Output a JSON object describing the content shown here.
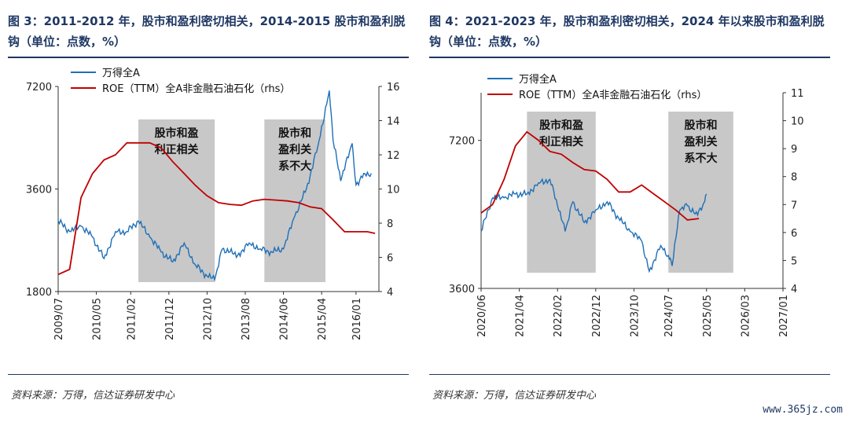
{
  "figures": [
    {
      "title": "图 3：2011-2012 年，股市和盈利密切相关，2014-2015 股市和盈利脱钩（单位：点数，%）",
      "source": "资料来源：万得，信达证券研发中心"
    },
    {
      "title": "图 4：2021-2023 年，股市和盈利密切相关，2024 年以来股市和盈利脱钩（单位：点数，%）",
      "source": "资料来源：万得，信达证券研发中心"
    }
  ],
  "watermark": "www.365jz.com",
  "colors": {
    "index": "#1f6fb7",
    "roe": "#c00000",
    "shade": "#c8c8c8",
    "axis": "#333333"
  },
  "chart_data": [
    {
      "type": "line",
      "y_scale_left": "log",
      "legend_position": "top-left",
      "series": [
        {
          "name": "万得全A",
          "axis": "left",
          "x": [
            "2009-07",
            "2009-10",
            "2010-01",
            "2010-04",
            "2010-07",
            "2010-10",
            "2011-01",
            "2011-04",
            "2011-07",
            "2011-10",
            "2012-01",
            "2012-04",
            "2012-07",
            "2012-10",
            "2012-12",
            "2013-02",
            "2013-06",
            "2013-09",
            "2013-12",
            "2014-03",
            "2014-06",
            "2014-09",
            "2014-12",
            "2015-03",
            "2015-06",
            "2015-07",
            "2015-09",
            "2015-12",
            "2016-01",
            "2016-03",
            "2016-05"
          ],
          "values": [
            2900,
            2700,
            2800,
            2600,
            2250,
            2700,
            2700,
            2900,
            2600,
            2350,
            2200,
            2500,
            2150,
            2000,
            1950,
            2400,
            2300,
            2500,
            2400,
            2350,
            2400,
            3000,
            3600,
            4800,
            7000,
            5000,
            3800,
            4900,
            3700,
            4000,
            4000
          ]
        },
        {
          "name": "ROE（TTM）全A非金融石油石化（rhs）",
          "axis": "right",
          "x": [
            "2009-07",
            "2009-10",
            "2010-01",
            "2010-04",
            "2010-07",
            "2010-10",
            "2011-01",
            "2011-04",
            "2011-07",
            "2011-10",
            "2012-01",
            "2012-04",
            "2012-07",
            "2012-10",
            "2013-01",
            "2013-04",
            "2013-07",
            "2013-10",
            "2014-01",
            "2014-04",
            "2014-07",
            "2014-10",
            "2015-01",
            "2015-04",
            "2015-07",
            "2015-10",
            "2016-01",
            "2016-04",
            "2016-06"
          ],
          "values": [
            5.0,
            5.3,
            9.5,
            10.9,
            11.7,
            12.0,
            12.7,
            12.7,
            12.7,
            12.4,
            11.6,
            10.9,
            10.2,
            9.6,
            9.2,
            9.1,
            9.05,
            9.3,
            9.4,
            9.35,
            9.3,
            9.2,
            8.95,
            8.85,
            8.2,
            7.5,
            7.5,
            7.5,
            7.4
          ]
        }
      ],
      "shaded_periods": [
        {
          "start": "2011-04",
          "end": "2012-12",
          "label_lines": [
            "股市和盈",
            "利正相关"
          ]
        },
        {
          "start": "2014-01",
          "end": "2015-05",
          "label_lines": [
            "股市和",
            "盈利关",
            "系不大"
          ]
        }
      ],
      "y_left_ticks": [
        1800,
        3600,
        7200
      ],
      "y_left_range": [
        1800,
        7200
      ],
      "y_right_ticks": [
        4,
        6,
        8,
        10,
        12,
        14,
        16
      ],
      "y_right_range": [
        4,
        16
      ],
      "x_tick_labels": [
        "2009/07",
        "2010/05",
        "2011/02",
        "2011/12",
        "2012/10",
        "2013/08",
        "2014/06",
        "2015/04",
        "2016/01"
      ]
    },
    {
      "type": "line",
      "y_scale_left": "log",
      "legend_position": "top-left",
      "series": [
        {
          "name": "万得全A",
          "axis": "left",
          "x": [
            "2020-06",
            "2020-09",
            "2020-12",
            "2021-03",
            "2021-06",
            "2021-09",
            "2021-12",
            "2022-02",
            "2022-04",
            "2022-06",
            "2022-09",
            "2022-12",
            "2023-03",
            "2023-06",
            "2023-09",
            "2023-12",
            "2024-02",
            "2024-05",
            "2024-07",
            "2024-08",
            "2024-10",
            "2024-12",
            "2025-02",
            "2025-04",
            "2025-05"
          ],
          "values": [
            4700,
            5500,
            5500,
            5600,
            5600,
            5900,
            6000,
            5300,
            4700,
            5400,
            4900,
            5200,
            5400,
            5000,
            4700,
            4500,
            3900,
            4400,
            4200,
            4000,
            5200,
            5300,
            5100,
            5300,
            5600
          ]
        },
        {
          "name": "ROE（TTM）全A非金融石油石化（rhs）",
          "axis": "right",
          "x": [
            "2020-06",
            "2020-09",
            "2020-12",
            "2021-03",
            "2021-06",
            "2021-09",
            "2021-12",
            "2022-03",
            "2022-06",
            "2022-09",
            "2022-12",
            "2023-03",
            "2023-06",
            "2023-09",
            "2023-12",
            "2024-03",
            "2024-06",
            "2024-09",
            "2024-12",
            "2025-03"
          ],
          "values": [
            6.7,
            7.0,
            7.9,
            9.1,
            9.6,
            9.3,
            8.9,
            8.8,
            8.5,
            8.25,
            8.2,
            7.9,
            7.45,
            7.45,
            7.7,
            7.4,
            7.1,
            6.8,
            6.45,
            6.5
          ]
        }
      ],
      "shaded_periods": [
        {
          "start": "2021-06",
          "end": "2022-12",
          "label_lines": [
            "股市和盈",
            "利正相关"
          ]
        },
        {
          "start": "2024-07",
          "end": "2025-12",
          "label_lines": [
            "股市和",
            "盈利关",
            "系不大"
          ]
        }
      ],
      "y_left_ticks": [
        3600,
        7200
      ],
      "y_left_range": [
        3600,
        9000
      ],
      "y_right_ticks": [
        4,
        5,
        6,
        7,
        8,
        9,
        10,
        11
      ],
      "y_right_range": [
        4,
        11
      ],
      "x_tick_labels": [
        "2020/06",
        "2021/04",
        "2022/02",
        "2022/12",
        "2023/10",
        "2024/07",
        "2025/05",
        "2026/03",
        "2027/01"
      ]
    }
  ]
}
